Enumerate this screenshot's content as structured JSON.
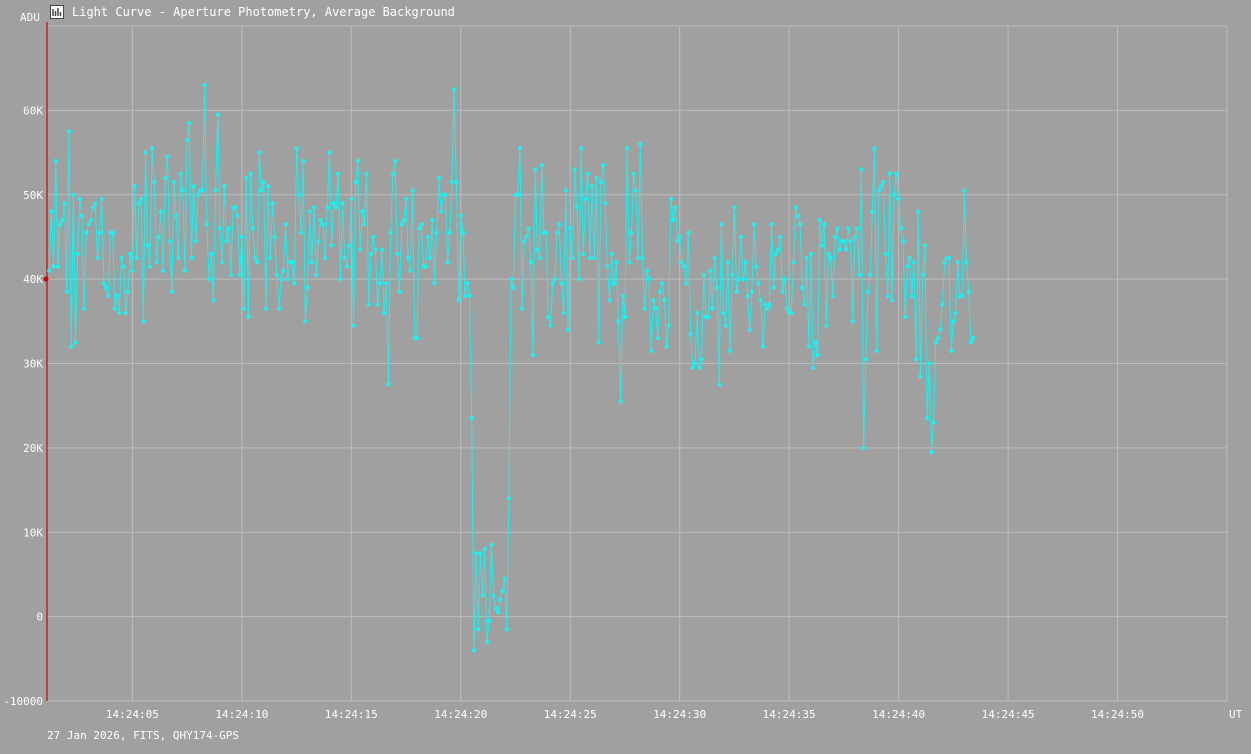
{
  "window": {
    "title": "Light Curve - Aperture Photometry, Average Background",
    "icon": "chart-icon"
  },
  "footer": {
    "info": "27 Jan 2026, FITS, QHY174-GPS"
  },
  "chart_data": {
    "type": "line",
    "ylabel": "ADU",
    "xlabel": "UT",
    "ylim": [
      -10000,
      70000
    ],
    "y_ticks": [
      -10000,
      0,
      10000,
      20000,
      30000,
      40000,
      50000,
      60000
    ],
    "y_tick_labels": [
      "-10000",
      "0",
      "10K",
      "20K",
      "30K",
      "40K",
      "50K",
      "60K"
    ],
    "x_ticks": [
      5,
      10,
      15,
      20,
      25,
      30,
      35,
      40,
      45,
      50
    ],
    "x_tick_labels": [
      "14:24:05",
      "14:24:10",
      "14:24:15",
      "14:24:20",
      "14:24:25",
      "14:24:30",
      "14:24:35",
      "14:24:40",
      "14:24:45",
      "14:24:50"
    ],
    "x_range_seconds": [
      1.1,
      55.0
    ],
    "grid": true,
    "colors": {
      "series": "#22ecec",
      "axis": "#d00000",
      "grid": "#bdbdbd",
      "background": "#a0a0a0",
      "text": "#ffffff"
    },
    "series": [
      {
        "x_start_seconds": 1.2,
        "x_step_seconds": 0.1,
        "values": [
          41000,
          48000,
          41500,
          54000,
          41500,
          46500,
          47000,
          49000,
          38500,
          57500,
          32000,
          50000,
          32500,
          43000,
          49500,
          47500,
          36500,
          45500,
          46500,
          47000,
          48500,
          49000,
          42500,
          45500,
          49500,
          39500,
          39000,
          38000,
          45500,
          45500,
          36500,
          38000,
          36000,
          42500,
          41500,
          36000,
          38500,
          43000,
          41000,
          51000,
          42500,
          49000,
          49500,
          35000,
          55000,
          44000,
          41500,
          55500,
          51500,
          42000,
          45000,
          48000,
          41000,
          52000,
          54500,
          44500,
          38500,
          51500,
          47500,
          42500,
          52500,
          50500,
          41000,
          56500,
          58500,
          42500,
          51000,
          44500,
          50000,
          50500,
          50500,
          63000,
          46500,
          40000,
          43000,
          37500,
          50500,
          59500,
          46000,
          42000,
          51000,
          44500,
          46000,
          40500,
          48500,
          48500,
          47500,
          40500,
          45000,
          36500,
          52000,
          35500,
          52500,
          46000,
          42500,
          42000,
          55000,
          50500,
          51500,
          36500,
          51000,
          42500,
          49000,
          45000,
          40500,
          36500,
          40000,
          41000,
          46500,
          40000,
          42000,
          42000,
          39500,
          55500,
          50000,
          45500,
          54000,
          35000,
          39000,
          48000,
          42000,
          48500,
          40500,
          44500,
          47000,
          46500,
          42500,
          48500,
          55000,
          44000,
          49000,
          48500,
          52500,
          40000,
          49000,
          42500,
          41500,
          44000,
          49500,
          34500,
          51500,
          54000,
          43500,
          48000,
          46500,
          52500,
          37000,
          43000,
          45000,
          43500,
          37000,
          39500,
          43500,
          36000,
          39500,
          27500,
          45500,
          52500,
          54000,
          43000,
          38500,
          46500,
          47000,
          49500,
          42500,
          41000,
          50500,
          33000,
          33000,
          46000,
          46500,
          41500,
          41500,
          45000,
          42500,
          47000,
          39500,
          45500,
          52000,
          48000,
          50000,
          50000,
          42000,
          45500,
          51500,
          62500,
          51500,
          37500,
          47500,
          45500,
          38000,
          39500,
          38000,
          23500,
          -4000,
          7500,
          -1500,
          7500,
          2500,
          8000,
          -3000,
          -500,
          8500,
          2500,
          1000,
          500,
          2000,
          3000,
          4500,
          -1500,
          14000,
          40000,
          39000,
          50000,
          50000,
          55500,
          36500,
          44500,
          45000,
          46000,
          42000,
          31000,
          53000,
          43500,
          42500,
          53500,
          45500,
          45500,
          35500,
          34500,
          39500,
          40000,
          45500,
          46500,
          39500,
          36000,
          50500,
          34000,
          46000,
          42500,
          53000,
          48500,
          40000,
          55500,
          43000,
          49500,
          52500,
          42500,
          51000,
          42500,
          52000,
          32500,
          51500,
          53500,
          49000,
          41500,
          37500,
          43000,
          39500,
          42000,
          35000,
          25500,
          38000,
          35500,
          55500,
          42000,
          45500,
          52500,
          50500,
          42500,
          56000,
          42500,
          36500,
          41000,
          40000,
          31500,
          37500,
          36500,
          33000,
          38500,
          39500,
          37500,
          32000,
          34500,
          49500,
          47000,
          48500,
          44500,
          45000,
          42000,
          41500,
          39500,
          45500,
          33500,
          29500,
          30000,
          36000,
          29500,
          30500,
          40500,
          35500,
          35500,
          41000,
          36500,
          42500,
          39000,
          27500,
          46500,
          36000,
          34500,
          42000,
          31500,
          40500,
          48500,
          38500,
          40000,
          45000,
          40000,
          42000,
          38000,
          34000,
          38500,
          46500,
          41500,
          39500,
          37500,
          32000,
          37000,
          36500,
          37000,
          46500,
          39000,
          43000,
          43500,
          45000,
          38500,
          40000,
          36500,
          36000,
          36000,
          42000,
          48500,
          47500,
          46500,
          39000,
          37000,
          42500,
          32000,
          43000,
          29500,
          32500,
          31000,
          47000,
          44000,
          46500,
          34500,
          43000,
          42500,
          38000,
          45000,
          46000,
          43500,
          44500,
          44500,
          43500,
          46000,
          44500,
          35000,
          45000,
          46000,
          40500,
          53000,
          20000,
          30500,
          38500,
          40500,
          48000,
          55500,
          31500,
          50500,
          51000,
          51500,
          43000,
          38000,
          52500,
          37500,
          50000,
          52500,
          49500,
          46000,
          44500,
          35500,
          41500,
          42500,
          38000,
          42000,
          30500,
          48000,
          28500,
          40500,
          44000,
          23500,
          30000,
          19500,
          23000,
          32500,
          33000,
          34000,
          37000,
          42000,
          42500,
          42500,
          31500,
          35000,
          36000,
          42000,
          38000,
          38000,
          50500,
          42000,
          38500,
          32500,
          33000
        ]
      }
    ]
  }
}
